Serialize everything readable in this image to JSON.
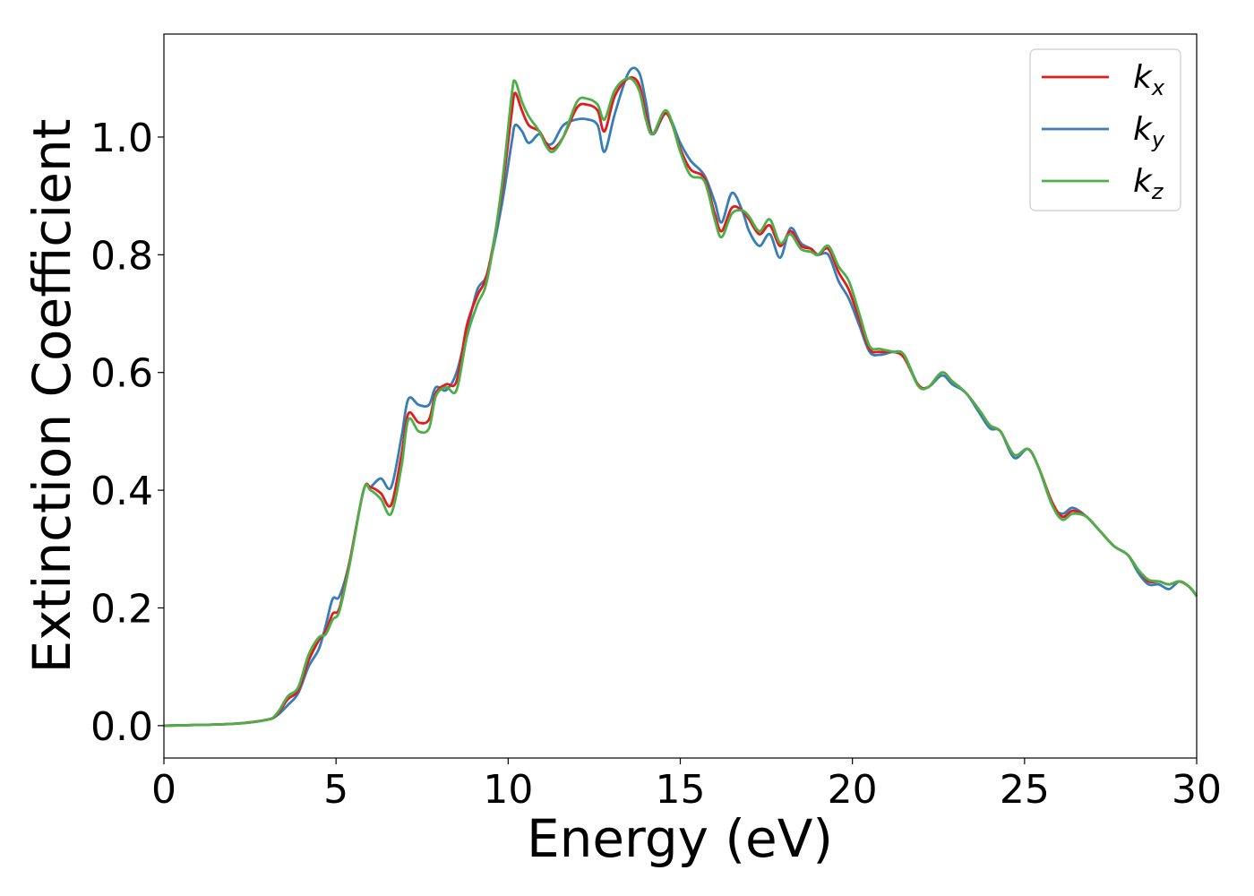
{
  "chart_data": {
    "type": "line",
    "title": "",
    "xlabel": "Energy (eV)",
    "ylabel": "Extinction Coefficient",
    "xlim": [
      0,
      30
    ],
    "ylim": [
      -0.055,
      1.175
    ],
    "x_ticks": [
      0,
      5,
      10,
      15,
      20,
      25,
      30
    ],
    "x_tick_labels": [
      "0",
      "5",
      "10",
      "15",
      "20",
      "25",
      "30"
    ],
    "y_ticks": [
      0.0,
      0.2,
      0.4,
      0.6,
      0.8,
      1.0
    ],
    "y_tick_labels": [
      "0.0",
      "0.2",
      "0.4",
      "0.6",
      "0.8",
      "1.0"
    ],
    "grid": false,
    "legend_position": "top-right",
    "series": [
      {
        "name": "kx",
        "legend_main": "k",
        "legend_sub": "x",
        "color": "#e41a1c",
        "points": [
          [
            0,
            0
          ],
          [
            2,
            0.003
          ],
          [
            3,
            0.01
          ],
          [
            3.3,
            0.02
          ],
          [
            3.6,
            0.045
          ],
          [
            3.9,
            0.06
          ],
          [
            4.2,
            0.11
          ],
          [
            4.5,
            0.145
          ],
          [
            4.7,
            0.16
          ],
          [
            4.9,
            0.19
          ],
          [
            5.1,
            0.2
          ],
          [
            5.4,
            0.28
          ],
          [
            5.8,
            0.4
          ],
          [
            6.0,
            0.405
          ],
          [
            6.3,
            0.395
          ],
          [
            6.6,
            0.375
          ],
          [
            6.9,
            0.46
          ],
          [
            7.1,
            0.53
          ],
          [
            7.4,
            0.515
          ],
          [
            7.7,
            0.52
          ],
          [
            7.9,
            0.565
          ],
          [
            8.2,
            0.58
          ],
          [
            8.5,
            0.585
          ],
          [
            8.8,
            0.68
          ],
          [
            9.1,
            0.73
          ],
          [
            9.4,
            0.77
          ],
          [
            9.8,
            0.9
          ],
          [
            10.1,
            1.04
          ],
          [
            10.2,
            1.075
          ],
          [
            10.4,
            1.045
          ],
          [
            10.6,
            1.02
          ],
          [
            10.9,
            1.01
          ],
          [
            11.1,
            0.99
          ],
          [
            11.3,
            0.98
          ],
          [
            11.6,
            1.0
          ],
          [
            12.0,
            1.05
          ],
          [
            12.3,
            1.055
          ],
          [
            12.6,
            1.045
          ],
          [
            12.8,
            1.01
          ],
          [
            13.1,
            1.07
          ],
          [
            13.5,
            1.1
          ],
          [
            13.8,
            1.09
          ],
          [
            14.0,
            1.04
          ],
          [
            14.2,
            1.005
          ],
          [
            14.6,
            1.04
          ],
          [
            15.0,
            0.98
          ],
          [
            15.3,
            0.945
          ],
          [
            15.7,
            0.93
          ],
          [
            16.0,
            0.87
          ],
          [
            16.2,
            0.84
          ],
          [
            16.5,
            0.88
          ],
          [
            16.8,
            0.875
          ],
          [
            17.0,
            0.86
          ],
          [
            17.3,
            0.835
          ],
          [
            17.6,
            0.85
          ],
          [
            17.9,
            0.815
          ],
          [
            18.2,
            0.84
          ],
          [
            18.5,
            0.815
          ],
          [
            18.8,
            0.81
          ],
          [
            19.0,
            0.8
          ],
          [
            19.3,
            0.81
          ],
          [
            19.6,
            0.77
          ],
          [
            19.9,
            0.74
          ],
          [
            20.2,
            0.69
          ],
          [
            20.5,
            0.64
          ],
          [
            20.8,
            0.635
          ],
          [
            21.2,
            0.635
          ],
          [
            21.5,
            0.625
          ],
          [
            21.9,
            0.58
          ],
          [
            22.2,
            0.575
          ],
          [
            22.6,
            0.6
          ],
          [
            22.9,
            0.585
          ],
          [
            23.3,
            0.565
          ],
          [
            23.7,
            0.535
          ],
          [
            24.0,
            0.51
          ],
          [
            24.3,
            0.5
          ],
          [
            24.7,
            0.46
          ],
          [
            25.1,
            0.47
          ],
          [
            25.4,
            0.44
          ],
          [
            25.8,
            0.38
          ],
          [
            26.1,
            0.355
          ],
          [
            26.4,
            0.365
          ],
          [
            26.8,
            0.355
          ],
          [
            27.2,
            0.33
          ],
          [
            27.6,
            0.305
          ],
          [
            28.0,
            0.29
          ],
          [
            28.3,
            0.265
          ],
          [
            28.6,
            0.245
          ],
          [
            28.9,
            0.245
          ],
          [
            29.2,
            0.24
          ],
          [
            29.5,
            0.245
          ],
          [
            29.8,
            0.235
          ],
          [
            30.0,
            0.22
          ]
        ]
      },
      {
        "name": "ky",
        "legend_main": "k",
        "legend_sub": "y",
        "color": "#377eb8",
        "points": [
          [
            0,
            0
          ],
          [
            2,
            0.003
          ],
          [
            3,
            0.01
          ],
          [
            3.3,
            0.018
          ],
          [
            3.6,
            0.035
          ],
          [
            3.9,
            0.055
          ],
          [
            4.2,
            0.1
          ],
          [
            4.5,
            0.13
          ],
          [
            4.7,
            0.17
          ],
          [
            4.9,
            0.215
          ],
          [
            5.1,
            0.22
          ],
          [
            5.4,
            0.28
          ],
          [
            5.8,
            0.4
          ],
          [
            6.0,
            0.405
          ],
          [
            6.3,
            0.42
          ],
          [
            6.6,
            0.405
          ],
          [
            6.9,
            0.49
          ],
          [
            7.1,
            0.555
          ],
          [
            7.4,
            0.545
          ],
          [
            7.7,
            0.545
          ],
          [
            7.9,
            0.575
          ],
          [
            8.2,
            0.57
          ],
          [
            8.5,
            0.6
          ],
          [
            8.8,
            0.67
          ],
          [
            9.1,
            0.74
          ],
          [
            9.4,
            0.77
          ],
          [
            9.8,
            0.88
          ],
          [
            10.1,
            0.99
          ],
          [
            10.2,
            1.02
          ],
          [
            10.4,
            1.01
          ],
          [
            10.6,
            0.99
          ],
          [
            10.9,
            1.005
          ],
          [
            11.1,
            0.99
          ],
          [
            11.3,
            0.99
          ],
          [
            11.6,
            1.02
          ],
          [
            12.0,
            1.03
          ],
          [
            12.3,
            1.03
          ],
          [
            12.6,
            1.02
          ],
          [
            12.8,
            0.975
          ],
          [
            13.1,
            1.04
          ],
          [
            13.5,
            1.11
          ],
          [
            13.8,
            1.11
          ],
          [
            14.0,
            1.06
          ],
          [
            14.2,
            1.005
          ],
          [
            14.6,
            1.04
          ],
          [
            15.0,
            0.99
          ],
          [
            15.3,
            0.96
          ],
          [
            15.7,
            0.935
          ],
          [
            16.0,
            0.89
          ],
          [
            16.2,
            0.855
          ],
          [
            16.5,
            0.905
          ],
          [
            16.8,
            0.875
          ],
          [
            17.0,
            0.84
          ],
          [
            17.3,
            0.815
          ],
          [
            17.6,
            0.835
          ],
          [
            17.9,
            0.795
          ],
          [
            18.2,
            0.845
          ],
          [
            18.5,
            0.82
          ],
          [
            18.8,
            0.81
          ],
          [
            19.0,
            0.8
          ],
          [
            19.3,
            0.8
          ],
          [
            19.6,
            0.755
          ],
          [
            19.9,
            0.725
          ],
          [
            20.2,
            0.68
          ],
          [
            20.5,
            0.635
          ],
          [
            20.8,
            0.63
          ],
          [
            21.2,
            0.635
          ],
          [
            21.5,
            0.63
          ],
          [
            21.9,
            0.58
          ],
          [
            22.2,
            0.575
          ],
          [
            22.6,
            0.595
          ],
          [
            22.9,
            0.58
          ],
          [
            23.3,
            0.565
          ],
          [
            23.7,
            0.53
          ],
          [
            24.0,
            0.505
          ],
          [
            24.3,
            0.5
          ],
          [
            24.7,
            0.455
          ],
          [
            25.1,
            0.47
          ],
          [
            25.4,
            0.44
          ],
          [
            25.8,
            0.375
          ],
          [
            26.1,
            0.36
          ],
          [
            26.4,
            0.37
          ],
          [
            26.8,
            0.355
          ],
          [
            27.2,
            0.33
          ],
          [
            27.6,
            0.305
          ],
          [
            28.0,
            0.29
          ],
          [
            28.3,
            0.26
          ],
          [
            28.6,
            0.24
          ],
          [
            28.9,
            0.24
          ],
          [
            29.2,
            0.232
          ],
          [
            29.5,
            0.245
          ],
          [
            29.8,
            0.235
          ],
          [
            30.0,
            0.22
          ]
        ]
      },
      {
        "name": "kz",
        "legend_main": "k",
        "legend_sub": "z",
        "color": "#4daf4a",
        "points": [
          [
            0,
            0
          ],
          [
            2,
            0.003
          ],
          [
            3,
            0.01
          ],
          [
            3.3,
            0.022
          ],
          [
            3.6,
            0.05
          ],
          [
            3.9,
            0.065
          ],
          [
            4.2,
            0.12
          ],
          [
            4.5,
            0.15
          ],
          [
            4.7,
            0.155
          ],
          [
            4.9,
            0.18
          ],
          [
            5.1,
            0.195
          ],
          [
            5.4,
            0.275
          ],
          [
            5.8,
            0.4
          ],
          [
            6.0,
            0.4
          ],
          [
            6.3,
            0.385
          ],
          [
            6.6,
            0.36
          ],
          [
            6.9,
            0.44
          ],
          [
            7.1,
            0.52
          ],
          [
            7.4,
            0.5
          ],
          [
            7.7,
            0.505
          ],
          [
            7.9,
            0.56
          ],
          [
            8.2,
            0.575
          ],
          [
            8.5,
            0.57
          ],
          [
            8.8,
            0.66
          ],
          [
            9.1,
            0.715
          ],
          [
            9.4,
            0.76
          ],
          [
            9.8,
            0.91
          ],
          [
            10.1,
            1.07
          ],
          [
            10.2,
            1.095
          ],
          [
            10.4,
            1.06
          ],
          [
            10.6,
            1.035
          ],
          [
            10.9,
            1.01
          ],
          [
            11.1,
            0.985
          ],
          [
            11.3,
            0.975
          ],
          [
            11.6,
            1.0
          ],
          [
            12.0,
            1.06
          ],
          [
            12.3,
            1.065
          ],
          [
            12.6,
            1.055
          ],
          [
            12.8,
            1.03
          ],
          [
            13.1,
            1.08
          ],
          [
            13.5,
            1.1
          ],
          [
            13.8,
            1.08
          ],
          [
            14.0,
            1.03
          ],
          [
            14.2,
            1.005
          ],
          [
            14.6,
            1.045
          ],
          [
            15.0,
            0.975
          ],
          [
            15.3,
            0.935
          ],
          [
            15.7,
            0.925
          ],
          [
            16.0,
            0.86
          ],
          [
            16.2,
            0.83
          ],
          [
            16.5,
            0.87
          ],
          [
            16.8,
            0.875
          ],
          [
            17.0,
            0.865
          ],
          [
            17.3,
            0.84
          ],
          [
            17.6,
            0.86
          ],
          [
            17.9,
            0.82
          ],
          [
            18.2,
            0.835
          ],
          [
            18.5,
            0.81
          ],
          [
            18.8,
            0.805
          ],
          [
            19.0,
            0.8
          ],
          [
            19.3,
            0.815
          ],
          [
            19.6,
            0.78
          ],
          [
            19.9,
            0.755
          ],
          [
            20.2,
            0.7
          ],
          [
            20.5,
            0.645
          ],
          [
            20.8,
            0.64
          ],
          [
            21.2,
            0.635
          ],
          [
            21.5,
            0.63
          ],
          [
            21.9,
            0.578
          ],
          [
            22.2,
            0.575
          ],
          [
            22.6,
            0.6
          ],
          [
            22.9,
            0.585
          ],
          [
            23.3,
            0.565
          ],
          [
            23.7,
            0.535
          ],
          [
            24.0,
            0.51
          ],
          [
            24.3,
            0.5
          ],
          [
            24.7,
            0.46
          ],
          [
            25.1,
            0.47
          ],
          [
            25.4,
            0.44
          ],
          [
            25.8,
            0.375
          ],
          [
            26.1,
            0.35
          ],
          [
            26.4,
            0.36
          ],
          [
            26.8,
            0.355
          ],
          [
            27.2,
            0.33
          ],
          [
            27.6,
            0.305
          ],
          [
            28.0,
            0.29
          ],
          [
            28.3,
            0.265
          ],
          [
            28.6,
            0.248
          ],
          [
            28.9,
            0.245
          ],
          [
            29.2,
            0.24
          ],
          [
            29.5,
            0.245
          ],
          [
            29.8,
            0.235
          ],
          [
            30.0,
            0.22
          ]
        ]
      }
    ]
  }
}
